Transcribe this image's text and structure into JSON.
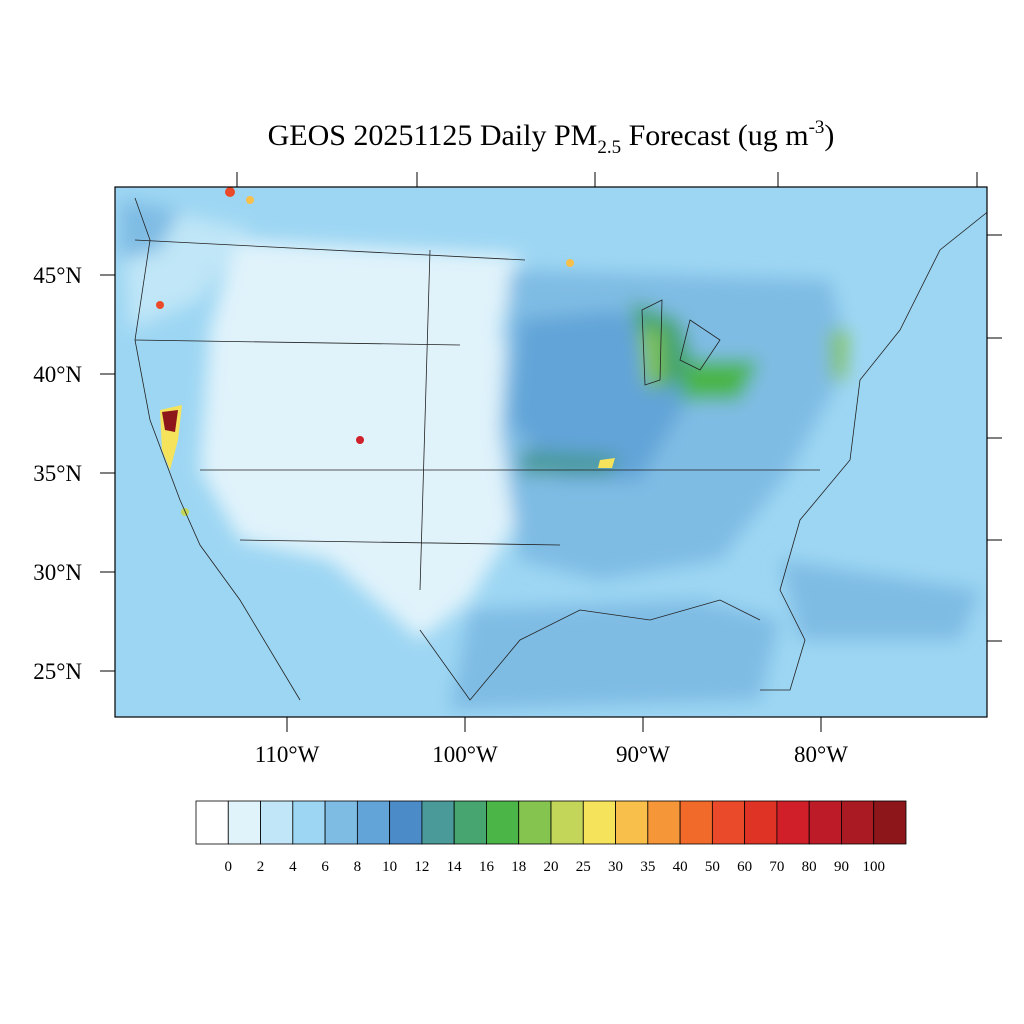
{
  "title": {
    "main": "GEOS 20251125 Daily PM",
    "sub": "2.5",
    "rest": " Forecast (ug m",
    "sup": "-3",
    "end": ")"
  },
  "lat_labels": [
    {
      "value": 45,
      "label": "45°N"
    },
    {
      "value": 40,
      "label": "40°N"
    },
    {
      "value": 35,
      "label": "35°N"
    },
    {
      "value": 30,
      "label": "30°N"
    },
    {
      "value": 25,
      "label": "25°N"
    }
  ],
  "lon_labels": [
    {
      "value": -110,
      "label": "110°W"
    },
    {
      "value": -100,
      "label": "100°W"
    },
    {
      "value": -90,
      "label": "90°W"
    },
    {
      "value": -80,
      "label": "80°W"
    }
  ],
  "colorbar": {
    "levels": [
      0,
      2,
      4,
      6,
      8,
      10,
      12,
      14,
      16,
      18,
      20,
      25,
      30,
      35,
      40,
      50,
      60,
      70,
      80,
      90,
      100
    ],
    "colors": [
      "#ffffff",
      "#e0f3fb",
      "#c0e6f7",
      "#9dd6f3",
      "#7fbce4",
      "#62a4d8",
      "#4a8bc8",
      "#4a9a9a",
      "#47a56f",
      "#4cb548",
      "#84c44f",
      "#c3d65a",
      "#f6e35c",
      "#f8bf4b",
      "#f59639",
      "#f26a2a",
      "#ea4a2a",
      "#df3326",
      "#d11f2a",
      "#bd1b27",
      "#a91a22",
      "#8d161b"
    ]
  }
}
